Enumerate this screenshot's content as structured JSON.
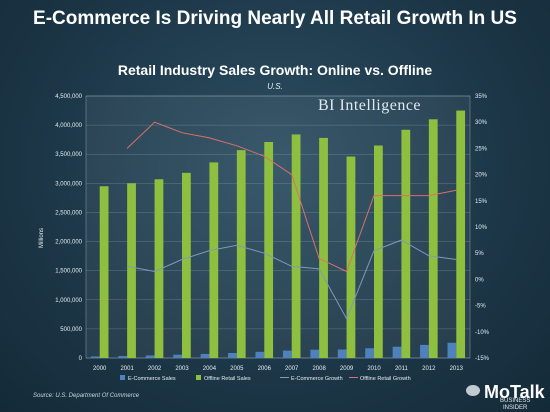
{
  "headline": "E-Commerce Is Driving Nearly All Retail Growth In US",
  "chart_data": {
    "type": "bar",
    "title": "Retail Industry Sales Growth: Online vs. Offline",
    "subtitle": "U.S.",
    "ylabel": "Millions",
    "ylim": [
      0,
      4500000
    ],
    "y2lim": [
      -15,
      35
    ],
    "yticks": [
      "0",
      "500,000",
      "1,000,000",
      "1,500,000",
      "2,000,000",
      "2,500,000",
      "3,000,000",
      "3,500,000",
      "4,000,000",
      "4,500,000"
    ],
    "y2ticks": [
      "-15%",
      "-10%",
      "-5%",
      "0%",
      "5%",
      "10%",
      "15%",
      "20%",
      "25%",
      "30%",
      "35%"
    ],
    "categories": [
      "2000",
      "2001",
      "2002",
      "2003",
      "2004",
      "2005",
      "2006",
      "2007",
      "2008",
      "2009",
      "2010",
      "2011",
      "2012",
      "2013"
    ],
    "series": [
      {
        "name": "E-Commerce Sales",
        "kind": "bar",
        "axis": "left",
        "color": "#4f81bd",
        "values": [
          27000,
          34000,
          44000,
          56000,
          70000,
          86000,
          106000,
          127000,
          142000,
          146000,
          168000,
          194000,
          225000,
          262000
        ]
      },
      {
        "name": "Offline Retail Sales",
        "kind": "bar",
        "axis": "left",
        "color": "#8fbf3f",
        "values": [
          2950000,
          3000000,
          3070000,
          3180000,
          3360000,
          3570000,
          3710000,
          3840000,
          3780000,
          3460000,
          3650000,
          3920000,
          4100000,
          4250000
        ]
      },
      {
        "name": "E-Commerce Growth",
        "kind": "line",
        "axis": "right",
        "color": "#7f9ab8",
        "values": [
          null,
          2.5,
          1.5,
          3.8,
          5.5,
          6.5,
          5.0,
          2.5,
          2.0,
          -7.5,
          5.5,
          7.5,
          4.5,
          3.8
        ]
      },
      {
        "name": "Offline Retail Growth",
        "kind": "line",
        "axis": "right",
        "color": "#d9706a",
        "values": [
          null,
          25,
          30,
          28,
          27,
          25.5,
          23.5,
          20,
          4,
          1.5,
          16,
          16,
          16,
          17
        ]
      }
    ],
    "legend_position": "bottom",
    "grid": true
  },
  "brand": "BI Intelligence",
  "source": "Source: U.S. Department Of Commerce",
  "watermark": {
    "name": "MoTalk",
    "sub1": "BUSINESS",
    "sub2": "INSIDER"
  }
}
